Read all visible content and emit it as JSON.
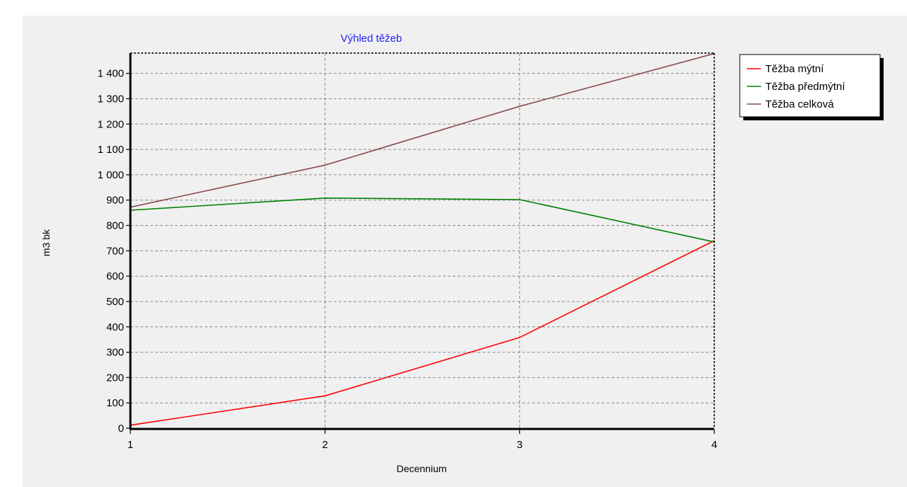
{
  "chart_data": {
    "type": "line",
    "title": "Výhled těžeb",
    "xlabel": "Decennium",
    "ylabel": "m3 bk",
    "x": [
      1,
      2,
      3,
      4
    ],
    "xlim": [
      1,
      4
    ],
    "ylim": [
      0,
      1480
    ],
    "yticks": [
      0,
      100,
      200,
      300,
      400,
      500,
      600,
      700,
      800,
      900,
      1000,
      1100,
      1200,
      1300,
      1400
    ],
    "ytick_labels": [
      "0",
      "100",
      "200",
      "300",
      "400",
      "500",
      "600",
      "700",
      "800",
      "900",
      "1 000",
      "1 100",
      "1 200",
      "1 300",
      "1 400"
    ],
    "xtick_labels": [
      "1",
      "2",
      "3",
      "4"
    ],
    "grid": true,
    "legend_position": "top-right",
    "series": [
      {
        "name": "Těžba mýtní",
        "color": "#ff0000",
        "values": [
          12,
          128,
          358,
          740
        ]
      },
      {
        "name": "Těžba předmýtní",
        "color": "#008000",
        "values": [
          860,
          908,
          902,
          735
        ]
      },
      {
        "name": "Těžba celková",
        "color": "#8b4c4c",
        "values": [
          872,
          1038,
          1270,
          1478
        ]
      }
    ]
  }
}
